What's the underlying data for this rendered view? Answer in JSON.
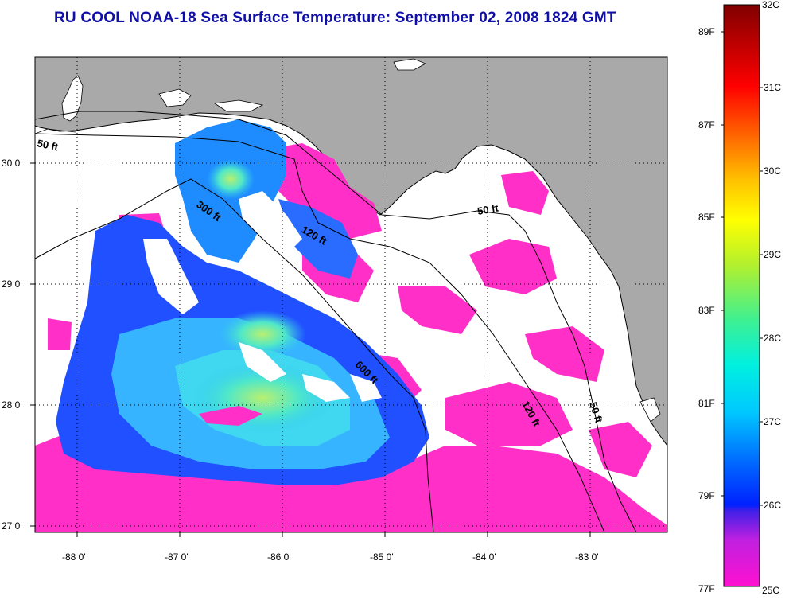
{
  "title": "RU COOL  NOAA-18  Sea Surface Temperature:  September 02, 2008 1824 GMT",
  "map": {
    "lat_labels": [
      "30 0'",
      "29 0'",
      "28 0'",
      "27 0'"
    ],
    "lon_labels": [
      "-88 0'",
      "-87 0'",
      "-86 0'",
      "-85 0'",
      "-84 0'",
      "-83 0'"
    ],
    "contour_labels": [
      "50 ft",
      "300 ft",
      "120 ft",
      "50 ft",
      "600 ft",
      "120 ft",
      "50 ft"
    ]
  },
  "colorbar": {
    "celsius_labels": [
      "32C",
      "31C",
      "30C",
      "29C",
      "28C",
      "27C",
      "26C",
      "25C"
    ],
    "fahrenheit_labels": [
      "89F",
      "87F",
      "85F",
      "83F",
      "81F",
      "79F",
      "77F"
    ],
    "colors": {
      "land": "#a9a9a9",
      "cloud": "#ffffff",
      "cool": "#ff2fc8",
      "warm": "#8b0000"
    }
  }
}
